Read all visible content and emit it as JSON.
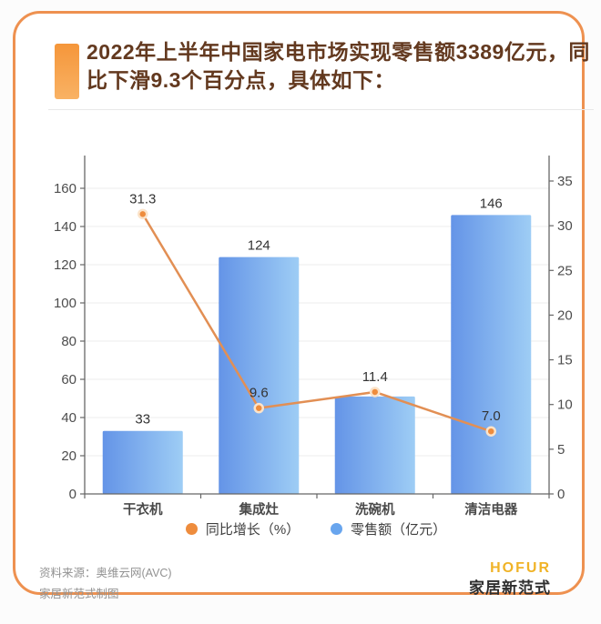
{
  "header": {
    "title": "2022年上半年中国家电市场实现零售额3389亿元，同比下滑9.3个百分点，具体如下：",
    "accent_color": "#f5963a"
  },
  "chart_data": {
    "type": "combo-bar-line",
    "categories": [
      "干衣机",
      "集成灶",
      "洗碗机",
      "清洁电器"
    ],
    "series": [
      {
        "name": "同比增长（%）",
        "type": "line",
        "axis": "right",
        "values": [
          31.3,
          9.6,
          11.4,
          7.0
        ],
        "labels": [
          "31.3",
          "9.6",
          "11.4",
          "7.0"
        ],
        "color": "#ee8c3d",
        "line_color": "#e28f54",
        "point_ring_color": "#fbe3c9"
      },
      {
        "name": "零售额（亿元）",
        "type": "bar",
        "axis": "left",
        "values": [
          33,
          124,
          51,
          146
        ],
        "labels": [
          "33",
          "124",
          "",
          "146"
        ],
        "color": "#6494e7",
        "color_light": "#9ecdf5",
        "legend_color": "#68a5ee"
      }
    ],
    "left_axis": {
      "min": 0,
      "max": 160,
      "step": 20
    },
    "right_axis": {
      "min": 0,
      "max": 35,
      "step": 5
    },
    "grid": true,
    "legend_position": "bottom"
  },
  "footer": {
    "source_line1": "资料来源：奥维云网(AVC)",
    "source_line2": "家居新范式制图",
    "logo_brand": "HOFUR",
    "logo_name": "家居新范式"
  },
  "colors": {
    "card_border": "#ee9150",
    "title_text": "#63391f",
    "axis_line": "#666666",
    "axis_label": "#4d4d4d",
    "grid_line": "#ededed",
    "data_label": "#333333",
    "category_label": "#4a4a4a"
  }
}
